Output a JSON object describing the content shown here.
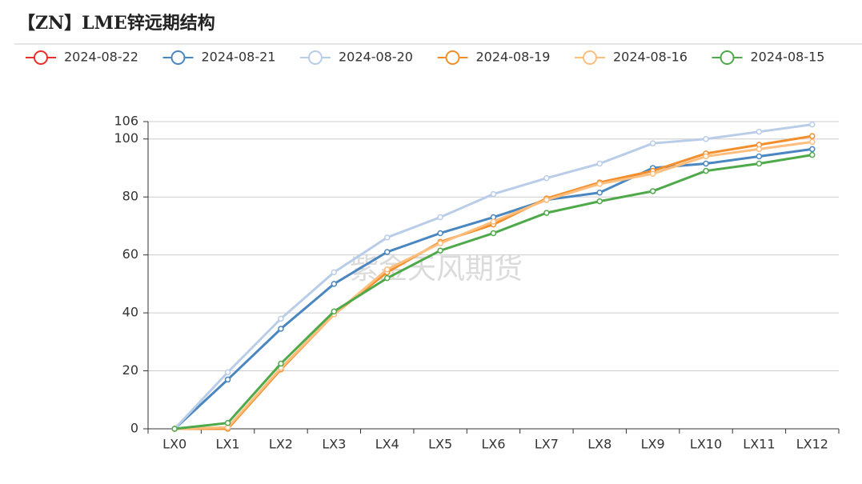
{
  "chart_data": {
    "type": "line",
    "title": "【ZN】LME锌远期结构",
    "watermark": "紫金天风期货",
    "categories": [
      "LX0",
      "LX1",
      "LX2",
      "LX3",
      "LX4",
      "LX5",
      "LX6",
      "LX7",
      "LX8",
      "LX9",
      "LX10",
      "LX11",
      "LX12"
    ],
    "series": [
      {
        "name": "2024-08-22",
        "color": "#e8302a",
        "values": [
          null,
          null,
          null,
          null,
          null,
          null,
          null,
          null,
          null,
          null,
          null,
          null,
          null
        ]
      },
      {
        "name": "2024-08-21",
        "color": "#4a86bf",
        "values": [
          0,
          17,
          34.5,
          50,
          61,
          67.5,
          73,
          79,
          81.5,
          90,
          91.5,
          94,
          96.5
        ]
      },
      {
        "name": "2024-08-20",
        "color": "#b9cde8",
        "values": [
          0,
          19.5,
          38,
          54,
          66,
          73,
          81,
          86.5,
          91.5,
          98.5,
          100,
          102.5,
          105
        ]
      },
      {
        "name": "2024-08-19",
        "color": "#f28e2b",
        "values": [
          0,
          0,
          20.5,
          39.5,
          54,
          64.5,
          70.5,
          79.5,
          85,
          89,
          95,
          98,
          101
        ]
      },
      {
        "name": "2024-08-16",
        "color": "#ffbe7d",
        "values": [
          0,
          0.5,
          21,
          39.5,
          55,
          64,
          71.5,
          79,
          84.5,
          88,
          94,
          96.5,
          99
        ]
      },
      {
        "name": "2024-08-15",
        "color": "#4ea94a",
        "values": [
          0,
          2,
          22.5,
          40.5,
          52,
          61.5,
          67.5,
          74.5,
          78.5,
          82,
          89,
          91.5,
          94.5
        ]
      }
    ],
    "ylim": [
      0,
      106
    ],
    "yticks": [
      0,
      20,
      40,
      60,
      80,
      100,
      106
    ],
    "grid": true
  }
}
